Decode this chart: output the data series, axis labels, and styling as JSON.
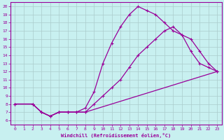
{
  "title": "",
  "xlabel": "Windchill (Refroidissement éolien,°C)",
  "bg_color": "#c8f0f0",
  "grid_color": "#aacccc",
  "line_color": "#990099",
  "xlim": [
    -0.5,
    23.5
  ],
  "ylim": [
    5.5,
    20.5
  ],
  "xticks": [
    0,
    1,
    2,
    3,
    4,
    5,
    6,
    7,
    8,
    9,
    10,
    11,
    12,
    13,
    14,
    15,
    16,
    17,
    18,
    19,
    20,
    21,
    22,
    23
  ],
  "yticks": [
    6,
    7,
    8,
    9,
    10,
    11,
    12,
    13,
    14,
    15,
    16,
    17,
    18,
    19,
    20
  ],
  "line1_x": [
    0,
    2,
    3,
    4,
    5,
    6,
    7,
    8,
    23
  ],
  "line1_y": [
    8,
    8,
    7,
    6.5,
    7,
    7,
    7,
    7,
    12
  ],
  "line2_x": [
    0,
    2,
    3,
    4,
    5,
    6,
    7,
    8,
    9,
    10,
    11,
    12,
    13,
    14,
    15,
    16,
    17,
    18,
    19,
    20,
    21,
    22,
    23
  ],
  "line2_y": [
    8,
    8,
    7,
    6.5,
    7,
    7,
    7,
    7.5,
    9.5,
    13,
    15.5,
    17.5,
    19,
    20,
    19.5,
    19,
    18,
    17,
    16.5,
    14.5,
    13,
    12.5,
    12
  ],
  "line3_x": [
    0,
    2,
    3,
    4,
    5,
    6,
    7,
    8,
    9,
    10,
    11,
    12,
    13,
    14,
    15,
    16,
    17,
    18,
    19,
    20,
    21,
    22,
    23
  ],
  "line3_y": [
    8,
    8,
    7,
    6.5,
    7,
    7,
    7,
    7,
    8,
    9,
    10,
    11,
    12.5,
    14,
    15,
    16,
    17,
    17.5,
    16.5,
    16,
    14.5,
    13,
    12
  ]
}
